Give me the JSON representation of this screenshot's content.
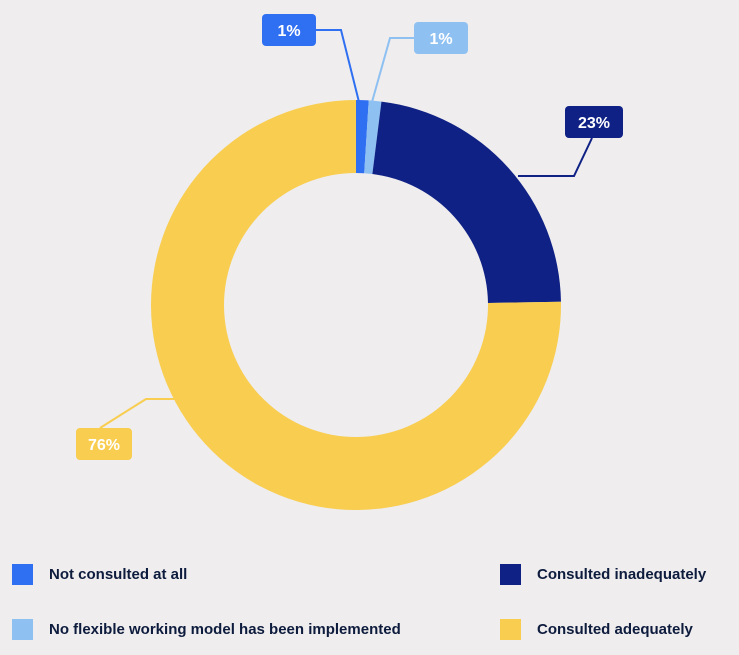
{
  "chart_data": {
    "type": "pie",
    "series": [
      {
        "name": "Not consulted at all",
        "value": 1,
        "label": "1%",
        "color": "#2f6ff2"
      },
      {
        "name": "No flexible working model has been implemented",
        "value": 1,
        "label": "1%",
        "color": "#8ec0f2"
      },
      {
        "name": "Consulted inadequately",
        "value": 23,
        "label": "23%",
        "color": "#0f2185"
      },
      {
        "name": "Consulted adequately",
        "value": 76,
        "label": "76%",
        "color": "#f8cd50"
      }
    ],
    "donut": true,
    "legend_position": "bottom"
  },
  "legend": [
    {
      "label": "Not consulted at all",
      "color": "#2f6ff2"
    },
    {
      "label": "Consulted inadequately",
      "color": "#0f2185"
    },
    {
      "label": "No flexible working model has been implemented",
      "color": "#8ec0f2"
    },
    {
      "label": "Consulted adequately",
      "color": "#f8cd50"
    }
  ]
}
